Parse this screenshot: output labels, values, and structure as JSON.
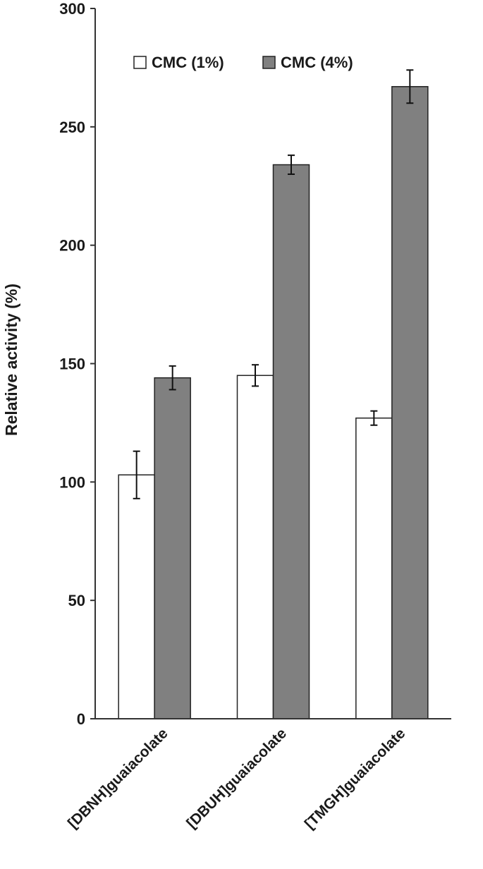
{
  "chart_data": {
    "type": "bar",
    "categories": [
      "[DBNH]guaiacolate",
      "[DBUH]guaiacolate",
      "[TMGH]guaiacolate"
    ],
    "series": [
      {
        "name": "CMC (1%)",
        "values": [
          103,
          145,
          127
        ],
        "errors": [
          10,
          4.5,
          3
        ],
        "color": "#ffffff"
      },
      {
        "name": "CMC (4%)",
        "values": [
          144,
          234,
          267
        ],
        "errors": [
          5,
          4,
          7
        ],
        "color": "#808080"
      }
    ],
    "ylabel": "Relative activity (%)",
    "xlabel": "",
    "ylim": [
      0,
      300
    ],
    "yticks": [
      0,
      50,
      100,
      150,
      200,
      250,
      300
    ],
    "grid": false,
    "legend_position": "top-left"
  }
}
